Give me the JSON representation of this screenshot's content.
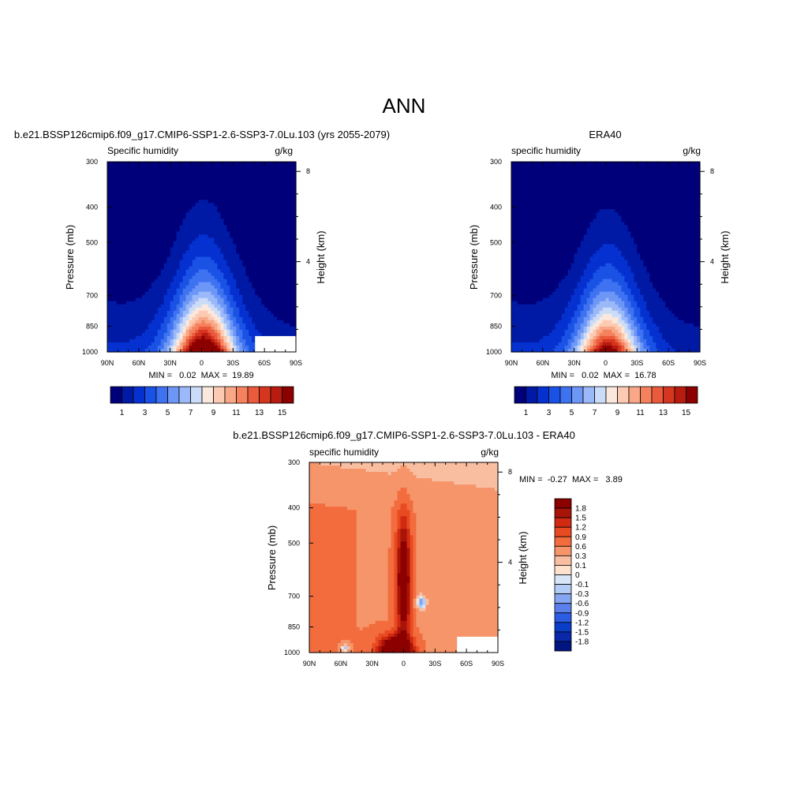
{
  "figure": {
    "title": "ANN"
  },
  "colors": {
    "abs_palette": [
      "#00007a",
      "#001aa5",
      "#0531d0",
      "#1a52e6",
      "#3e72f0",
      "#6d97f6",
      "#9bb8f8",
      "#cbdcf8",
      "#fbe8dc",
      "#fccab2",
      "#f9a887",
      "#f5825e",
      "#ea5a3c",
      "#d63620",
      "#b81c10",
      "#8c0000"
    ],
    "diff_palette": [
      "#8c0000",
      "#a81408",
      "#d02a12",
      "#e84a22",
      "#f26c3e",
      "#f6946a",
      "#f9bea0",
      "#fde3ce",
      "#d6e6f8",
      "#b3ccf6",
      "#86a6f2",
      "#5b80ec",
      "#2c5ce2",
      "#0a3ec8",
      "#0828a8",
      "#00157f"
    ]
  },
  "chart_data": [
    {
      "id": "model",
      "type": "heatmap",
      "title": "b.e21.BSSP126cmip6.f09_g17.CMIP6-SSP1-2.6-SSP3-7.0Lu.103 (yrs 2055-2079)",
      "left_label": "Specific humidity",
      "right_label": "g/kg",
      "ylabel": "Pressure (mb)",
      "ylabel_right": "Height (km)",
      "xlim": [
        -90,
        90
      ],
      "ylim": [
        1000,
        300
      ],
      "x_ticks": [
        {
          "value": -90,
          "label": "90N"
        },
        {
          "value": -60,
          "label": "60N"
        },
        {
          "value": -30,
          "label": "30N"
        },
        {
          "value": 0,
          "label": "0"
        },
        {
          "value": 30,
          "label": "30S"
        },
        {
          "value": 60,
          "label": "60S"
        },
        {
          "value": 90,
          "label": "90S"
        }
      ],
      "y_ticks": [
        300,
        400,
        500,
        700,
        850,
        1000
      ],
      "height_ticks": [
        8,
        4
      ],
      "min_max_text": "MIN =   0.02  MAX =  19.89",
      "min": 0.02,
      "max": 19.89,
      "missing_region": {
        "lat_range": [
          52,
          90
        ],
        "pressure_range": [
          900,
          1000
        ]
      },
      "colorbar": {
        "labels": [
          "1",
          "3",
          "5",
          "7",
          "9",
          "11",
          "13",
          "15"
        ]
      }
    },
    {
      "id": "obs",
      "type": "heatmap",
      "title": "ERA40",
      "left_label": "specific humidity",
      "right_label": "g/kg",
      "ylabel": "Pressure (mb)",
      "ylabel_right": "Height (km)",
      "xlim": [
        -90,
        90
      ],
      "ylim": [
        1000,
        300
      ],
      "x_ticks": [
        {
          "value": -90,
          "label": "90N"
        },
        {
          "value": -60,
          "label": "60N"
        },
        {
          "value": -30,
          "label": "30N"
        },
        {
          "value": 0,
          "label": "0"
        },
        {
          "value": 30,
          "label": "30S"
        },
        {
          "value": 60,
          "label": "60S"
        },
        {
          "value": 90,
          "label": "90S"
        }
      ],
      "y_ticks": [
        300,
        400,
        500,
        700,
        850,
        1000
      ],
      "height_ticks": [
        8,
        4
      ],
      "min_max_text": "MIN =   0.02  MAX =  16.78",
      "min": 0.02,
      "max": 16.78,
      "colorbar": {
        "labels": [
          "1",
          "3",
          "5",
          "7",
          "9",
          "11",
          "13",
          "15"
        ]
      }
    },
    {
      "id": "diff",
      "type": "heatmap",
      "title": "b.e21.BSSP126cmip6.f09_g17.CMIP6-SSP1-2.6-SSP3-7.0Lu.103 - ERA40",
      "left_label": "specific humidity",
      "right_label": "g/kg",
      "ylabel": "Pressure (mb)",
      "ylabel_right": "Height (km)",
      "xlim": [
        -90,
        90
      ],
      "ylim": [
        1000,
        300
      ],
      "x_ticks": [
        {
          "value": -90,
          "label": "90N"
        },
        {
          "value": -60,
          "label": "60N"
        },
        {
          "value": -30,
          "label": "30N"
        },
        {
          "value": 0,
          "label": "0"
        },
        {
          "value": 30,
          "label": "30S"
        },
        {
          "value": 60,
          "label": "60S"
        },
        {
          "value": 90,
          "label": "90S"
        }
      ],
      "y_ticks": [
        300,
        400,
        500,
        700,
        850,
        1000
      ],
      "height_ticks": [
        8,
        4
      ],
      "min_max_text": "MIN =  -0.27  MAX =   3.89",
      "min": -0.27,
      "max": 3.89,
      "missing_region": {
        "lat_range": [
          52,
          90
        ],
        "pressure_range": [
          900,
          1000
        ]
      },
      "colorbar": {
        "labels": [
          "1.8",
          "1.5",
          "1.2",
          "0.9",
          "0.6",
          "0.3",
          "0.1",
          "0",
          "-0.1",
          "-0.3",
          "-0.6",
          "-0.9",
          "-1.2",
          "-1.5",
          "-1.8"
        ]
      }
    }
  ]
}
